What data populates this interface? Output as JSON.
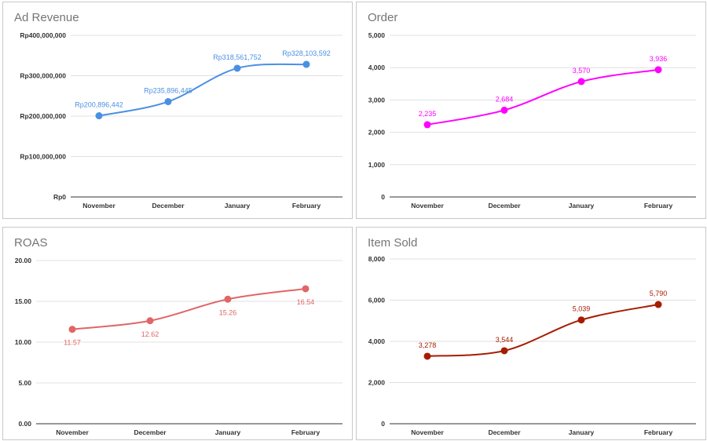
{
  "charts": [
    {
      "type": "line",
      "title": "Ad Revenue",
      "categories": [
        "November",
        "December",
        "January",
        "February"
      ],
      "values": [
        200896442,
        235896445,
        318561752,
        328103592
      ],
      "data_labels": [
        "Rp200,896,442",
        "Rp235,896,445",
        "Rp318,561,752",
        "Rp328,103,592"
      ],
      "yticks": [
        0,
        100000000,
        200000000,
        300000000,
        400000000
      ],
      "ytick_labels": [
        "Rp0",
        "Rp100,000,000",
        "Rp200,000,000",
        "Rp300,000,000",
        "Rp400,000,000"
      ],
      "ylim": [
        0,
        400000000
      ],
      "color": "#4a90e2",
      "label_position": "above",
      "grid": true,
      "legend": "none"
    },
    {
      "type": "line",
      "title": "Order",
      "categories": [
        "November",
        "December",
        "January",
        "February"
      ],
      "values": [
        2235,
        2684,
        3570,
        3936
      ],
      "data_labels": [
        "2,235",
        "2,684",
        "3,570",
        "3,936"
      ],
      "yticks": [
        0,
        1000,
        2000,
        3000,
        4000,
        5000
      ],
      "ytick_labels": [
        "0",
        "1,000",
        "2,000",
        "3,000",
        "4,000",
        "5,000"
      ],
      "ylim": [
        0,
        5000
      ],
      "color": "#ff00ff",
      "label_position": "above",
      "grid": true,
      "legend": "none"
    },
    {
      "type": "line",
      "title": "ROAS",
      "categories": [
        "November",
        "December",
        "January",
        "February"
      ],
      "values": [
        11.57,
        12.62,
        15.26,
        16.54
      ],
      "data_labels": [
        "11.57",
        "12.62",
        "15.26",
        "16.54"
      ],
      "yticks": [
        0,
        5,
        10,
        15,
        20
      ],
      "ytick_labels": [
        "0.00",
        "5.00",
        "10.00",
        "15.00",
        "20.00"
      ],
      "ylim": [
        0,
        20
      ],
      "color": "#e06666",
      "label_position": "below",
      "grid": true,
      "legend": "none"
    },
    {
      "type": "line",
      "title": "Item Sold",
      "categories": [
        "November",
        "December",
        "January",
        "February"
      ],
      "values": [
        3278,
        3544,
        5039,
        5790
      ],
      "data_labels": [
        "3,278",
        "3,544",
        "5,039",
        "5,790"
      ],
      "yticks": [
        0,
        2000,
        4000,
        6000,
        8000
      ],
      "ytick_labels": [
        "0",
        "2,000",
        "4,000",
        "6,000",
        "8,000"
      ],
      "ylim": [
        0,
        8000
      ],
      "color": "#a61c00",
      "label_position": "above",
      "grid": true,
      "legend": "none"
    }
  ]
}
